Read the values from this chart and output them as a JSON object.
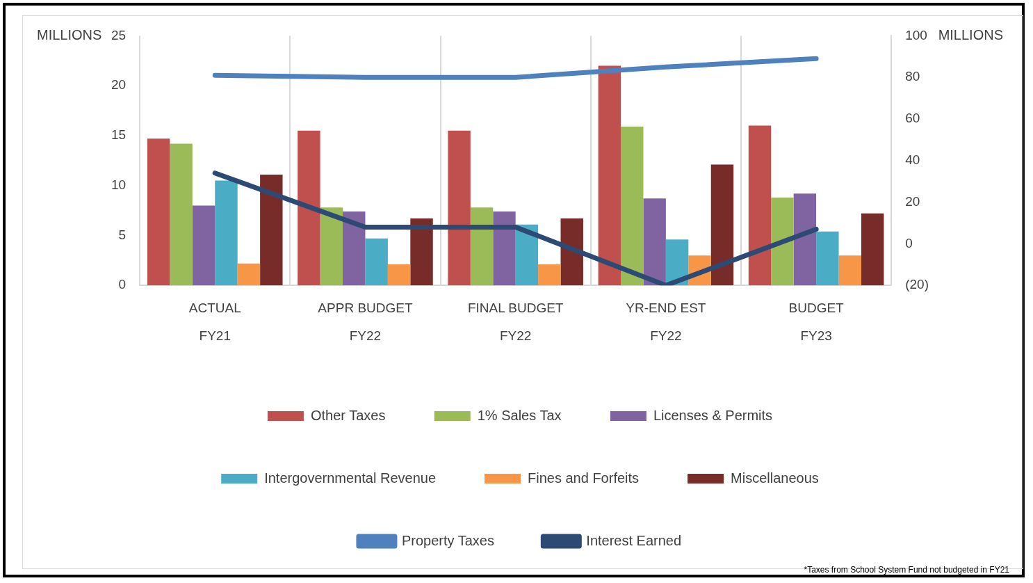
{
  "chart_data": {
    "type": "bar",
    "categories": [
      "ACTUAL\nFY21",
      "APPR BUDGET\nFY22",
      "FINAL BUDGET\nFY22",
      "YR-END EST\nFY22",
      "BUDGET\nFY23"
    ],
    "ylabel": "MILLIONS",
    "y2label": "MILLIONS",
    "ylim": [
      0,
      25
    ],
    "yticks": [
      0,
      5,
      10,
      15,
      20,
      25
    ],
    "y2lim": [
      -20,
      100
    ],
    "y2ticks": [
      {
        "value": -20,
        "label": "(20)"
      },
      0,
      20,
      40,
      60,
      80,
      100
    ],
    "grid": "x",
    "legend": "bottom",
    "marker": "none",
    "line_style": "solid",
    "series": [
      {
        "name": "Other Taxes",
        "color": "#c0504d",
        "values": [
          14.7,
          15.5,
          15.5,
          22.0,
          16.0
        ]
      },
      {
        "name": "1% Sales Tax",
        "color": "#9bbb59",
        "values": [
          14.2,
          7.8,
          7.8,
          15.9,
          8.8
        ]
      },
      {
        "name": "Licenses & Permits",
        "color": "#8064a2",
        "values": [
          8.0,
          7.4,
          7.4,
          8.7,
          9.2
        ]
      },
      {
        "name": "Intergovernmental Revenue",
        "color": "#4bacc6",
        "values": [
          10.5,
          4.7,
          6.1,
          4.6,
          5.4
        ]
      },
      {
        "name": "Fines and Forfeits",
        "color": "#f79646",
        "values": [
          2.2,
          2.1,
          2.1,
          3.0,
          3.0
        ]
      },
      {
        "name": "Miscellaneous",
        "color": "#772c2a",
        "values": [
          11.1,
          6.7,
          6.7,
          12.1,
          7.2
        ]
      },
      {
        "name": "Property Taxes",
        "type": "line",
        "axis": "y2",
        "color": "#4f81bd",
        "values": [
          81,
          80,
          80,
          85,
          89
        ]
      },
      {
        "name": "Interest Earned",
        "type": "line",
        "axis": "y2",
        "color": "#2c4a74",
        "values": [
          34,
          8,
          8,
          -20,
          7
        ]
      }
    ],
    "annotations": [
      "*Taxes from School System Fund not budgeted in FY21"
    ]
  }
}
